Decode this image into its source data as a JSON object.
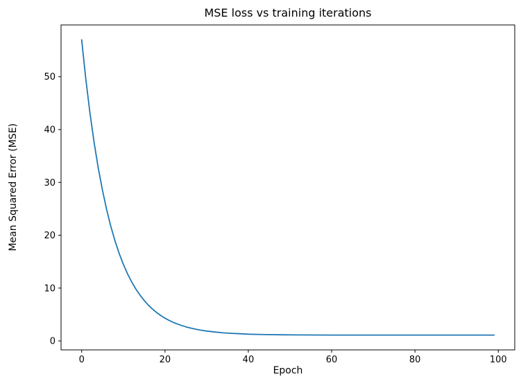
{
  "chart_data": {
    "type": "line",
    "title": "MSE loss vs training iterations",
    "xlabel": "Epoch",
    "ylabel": "Mean Squared Error (MSE)",
    "xlim": [
      -4.95,
      103.95
    ],
    "ylim": [
      -1.7,
      59.8
    ],
    "xticks": [
      0,
      20,
      40,
      60,
      80,
      100
    ],
    "yticks": [
      0,
      10,
      20,
      30,
      40,
      50
    ],
    "grid": false,
    "legend_position": "none",
    "line_color": "#1f77b4",
    "background_color": "#ffffff",
    "spine_color": "#000000",
    "series": [
      {
        "name": "MSE loss",
        "x": [
          0,
          1,
          2,
          3,
          4,
          5,
          6,
          7,
          8,
          9,
          10,
          11,
          12,
          13,
          14,
          15,
          16,
          17,
          18,
          19,
          20,
          21,
          22,
          23,
          24,
          25,
          26,
          27,
          28,
          29,
          30,
          32,
          34,
          36,
          38,
          40,
          44,
          48,
          52,
          56,
          60,
          65,
          70,
          75,
          80,
          85,
          90,
          95,
          99
        ],
        "y": [
          57.0,
          49.56,
          43.11,
          37.52,
          32.67,
          28.47,
          24.82,
          21.66,
          18.93,
          16.55,
          14.5,
          12.71,
          11.17,
          9.83,
          8.67,
          7.66,
          6.78,
          6.03,
          5.37,
          4.8,
          4.31,
          3.88,
          3.51,
          3.19,
          2.91,
          2.67,
          2.46,
          2.28,
          2.12,
          1.99,
          1.87,
          1.68,
          1.53,
          1.43,
          1.35,
          1.28,
          1.2,
          1.16,
          1.13,
          1.12,
          1.11,
          1.11,
          1.1,
          1.1,
          1.1,
          1.1,
          1.1,
          1.1,
          1.1
        ]
      }
    ]
  }
}
